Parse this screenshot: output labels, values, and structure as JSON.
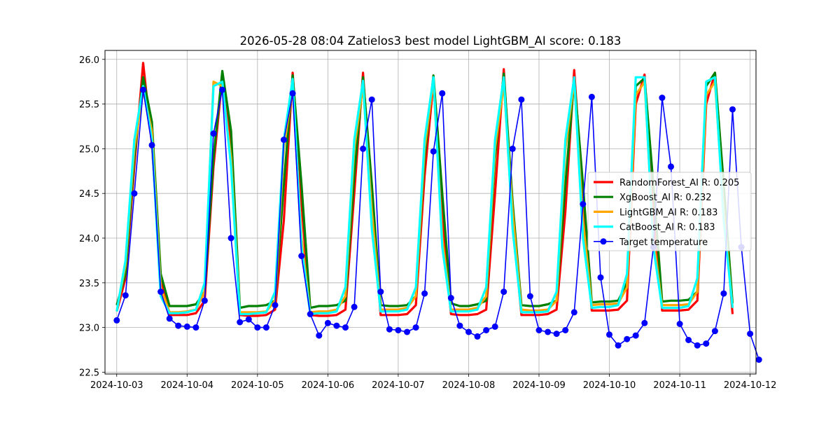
{
  "chart_data": {
    "type": "line",
    "title": "2026-05-28 08:04 Zatielos3 best model LightGBM_AI score: 0.183",
    "xlabel": "",
    "ylabel": "",
    "x_start": "2024-10-03T00:00",
    "x_step_hours": 3,
    "xlim": [
      "2024-10-02T20:00",
      "2024-10-12T02:00"
    ],
    "ylim": [
      22.48,
      26.1
    ],
    "x_ticks": [
      "2024-10-03",
      "2024-10-04",
      "2024-10-05",
      "2024-10-06",
      "2024-10-07",
      "2024-10-08",
      "2024-10-09",
      "2024-10-10",
      "2024-10-11",
      "2024-10-12"
    ],
    "y_ticks": [
      "22.5",
      "23.0",
      "23.5",
      "24.0",
      "24.5",
      "25.0",
      "25.5",
      "26.0"
    ],
    "grid": true,
    "legend_position": "right",
    "series": [
      {
        "name": "RandomForest_AI R: 0.205",
        "color": "#ff0000",
        "style": "line",
        "values": [
          23.18,
          23.55,
          24.8,
          25.96,
          25.05,
          23.55,
          23.14,
          23.14,
          23.14,
          23.16,
          23.3,
          24.8,
          25.81,
          25.05,
          23.14,
          23.13,
          23.13,
          23.14,
          23.2,
          24.2,
          25.85,
          24.4,
          23.14,
          23.13,
          23.13,
          23.14,
          23.2,
          24.5,
          25.85,
          24.4,
          23.14,
          23.14,
          23.14,
          23.15,
          23.25,
          24.7,
          25.75,
          24.2,
          23.15,
          23.14,
          23.14,
          23.15,
          23.2,
          24.5,
          25.89,
          24.2,
          23.14,
          23.14,
          23.14,
          23.15,
          23.2,
          24.3,
          25.88,
          24.4,
          23.19,
          23.19,
          23.19,
          23.2,
          23.3,
          25.5,
          25.83,
          24.3,
          23.19,
          23.19,
          23.19,
          23.2,
          23.3,
          25.5,
          25.85,
          24.4,
          23.15
        ]
      },
      {
        "name": "XgBoost_AI R: 0.232",
        "color": "#008000",
        "style": "line",
        "values": [
          23.25,
          23.6,
          24.9,
          25.8,
          25.3,
          23.6,
          23.24,
          23.24,
          23.24,
          23.26,
          23.4,
          24.9,
          25.87,
          25.2,
          23.22,
          23.24,
          23.24,
          23.25,
          23.3,
          24.6,
          25.82,
          24.6,
          23.22,
          23.24,
          23.24,
          23.25,
          23.3,
          24.7,
          25.8,
          24.6,
          23.25,
          23.24,
          23.24,
          23.25,
          23.35,
          24.9,
          25.82,
          24.5,
          23.27,
          23.24,
          23.24,
          23.26,
          23.3,
          24.9,
          25.84,
          24.4,
          23.25,
          23.24,
          23.24,
          23.26,
          23.3,
          24.6,
          25.78,
          24.6,
          23.28,
          23.29,
          23.29,
          23.3,
          23.5,
          25.7,
          25.79,
          24.6,
          23.29,
          23.3,
          23.3,
          23.31,
          23.4,
          25.7,
          25.85,
          24.6,
          23.27
        ]
      },
      {
        "name": "LightGBM_AI R: 0.183",
        "color": "#ffa500",
        "style": "line",
        "values": [
          23.18,
          23.7,
          25.0,
          25.65,
          25.2,
          23.45,
          23.17,
          23.17,
          23.18,
          23.2,
          23.4,
          25.75,
          25.7,
          24.9,
          23.17,
          23.17,
          23.17,
          23.18,
          23.3,
          25.0,
          25.7,
          24.0,
          23.17,
          23.18,
          23.18,
          23.2,
          23.35,
          25.0,
          25.7,
          24.3,
          23.2,
          23.2,
          23.2,
          23.22,
          23.35,
          25.0,
          25.76,
          24.0,
          23.2,
          23.2,
          23.2,
          23.22,
          23.35,
          25.0,
          25.72,
          24.3,
          23.2,
          23.19,
          23.19,
          23.2,
          23.3,
          25.0,
          25.75,
          24.2,
          23.25,
          23.26,
          23.26,
          23.27,
          23.45,
          25.6,
          25.75,
          24.0,
          23.25,
          23.25,
          23.25,
          23.26,
          23.4,
          25.6,
          25.75,
          24.3,
          23.22
        ]
      },
      {
        "name": "CatBoost_AI R: 0.183",
        "color": "#00ffff",
        "style": "line",
        "values": [
          23.18,
          23.75,
          25.1,
          25.7,
          25.1,
          23.35,
          23.16,
          23.16,
          23.17,
          23.2,
          23.5,
          25.7,
          25.75,
          24.8,
          23.15,
          23.15,
          23.16,
          23.17,
          23.4,
          25.1,
          25.78,
          23.9,
          23.15,
          23.16,
          23.16,
          23.18,
          23.45,
          25.1,
          25.76,
          24.1,
          23.18,
          23.18,
          23.18,
          23.2,
          23.45,
          25.1,
          25.8,
          23.9,
          23.18,
          23.18,
          23.18,
          23.2,
          23.45,
          25.1,
          25.8,
          24.1,
          23.17,
          23.17,
          23.17,
          23.18,
          23.4,
          25.1,
          25.8,
          24.0,
          23.22,
          23.23,
          23.23,
          23.25,
          23.6,
          25.8,
          25.8,
          23.9,
          23.22,
          23.22,
          23.22,
          23.24,
          23.55,
          25.75,
          25.8,
          24.2,
          23.22
        ]
      },
      {
        "name": "Target temperature",
        "color": "#0000ff",
        "style": "line-marker",
        "values": [
          23.08,
          23.36,
          24.5,
          25.66,
          25.04,
          23.4,
          23.1,
          23.02,
          23.01,
          23.0,
          23.3,
          25.17,
          25.66,
          24.0,
          23.06,
          23.09,
          23.0,
          23.0,
          23.25,
          25.1,
          25.62,
          23.8,
          23.15,
          22.91,
          23.05,
          23.02,
          23.0,
          23.23,
          25.0,
          25.55,
          23.4,
          22.98,
          22.97,
          22.95,
          23.0,
          23.38,
          24.97,
          25.62,
          23.33,
          23.02,
          22.95,
          22.9,
          22.97,
          23.01,
          23.4,
          25.0,
          25.55,
          23.35,
          22.97,
          22.95,
          22.93,
          22.97,
          23.17,
          24.38,
          25.58,
          23.56,
          22.92,
          22.8,
          22.87,
          22.91,
          23.05,
          23.9,
          25.57,
          24.8,
          23.04,
          22.86,
          22.8,
          22.82,
          22.96,
          23.38,
          25.44,
          23.9,
          22.93,
          22.64
        ]
      }
    ]
  }
}
